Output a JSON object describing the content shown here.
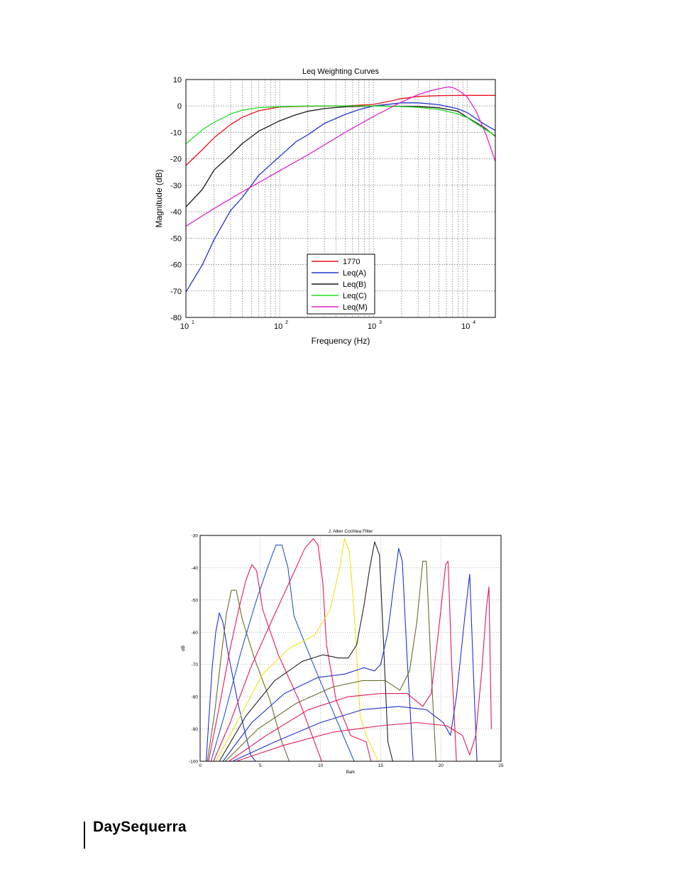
{
  "footer": {
    "brand": "DaySequerra"
  },
  "chart_data": [
    {
      "type": "line",
      "title": "Leq Weighting Curves",
      "xlabel": "Frequency (Hz)",
      "ylabel": "Magnitude (dB)",
      "xscale": "log",
      "xlim": [
        10,
        20000
      ],
      "ylim": [
        -80,
        10
      ],
      "grid": true,
      "legend_position": "bottom-center",
      "x_ticks": [
        10,
        100,
        1000,
        10000
      ],
      "x_tick_labels": [
        "10",
        "10",
        "10",
        "10"
      ],
      "x_tick_exponents": [
        "1",
        "2",
        "3",
        "4"
      ],
      "y_ticks": [
        10,
        0,
        -10,
        -20,
        -30,
        -40,
        -50,
        -60,
        -70,
        -80
      ],
      "y_tick_labels": [
        "10",
        "0",
        "-10",
        "-20",
        "-30",
        "-40",
        "-50",
        "-60",
        "-70",
        "-80"
      ],
      "series": [
        {
          "name": "1770",
          "color": "#e8121c",
          "x": [
            10,
            15,
            20,
            30,
            40,
            60,
            100,
            200,
            500,
            1000,
            1500,
            2000,
            3000,
            5000,
            10000,
            20000
          ],
          "values": [
            -22.5,
            -16.5,
            -12.0,
            -7.0,
            -4.3,
            -1.8,
            -0.4,
            -0.1,
            0.0,
            0.6,
            1.8,
            2.8,
            3.6,
            3.9,
            4.0,
            4.0
          ]
        },
        {
          "name": "Leq(A)",
          "color": "#2233cc",
          "x": [
            10,
            15,
            20,
            30,
            40,
            60,
            100,
            150,
            200,
            300,
            500,
            700,
            1000,
            2000,
            3000,
            5000,
            8000,
            10000,
            15000,
            20000
          ],
          "values": [
            -70.4,
            -60.0,
            -50.5,
            -39.5,
            -34.6,
            -26.2,
            -19.1,
            -13.5,
            -10.9,
            -6.6,
            -3.2,
            -1.4,
            0.0,
            1.2,
            1.2,
            0.5,
            -1.1,
            -2.5,
            -6.7,
            -9.3
          ]
        },
        {
          "name": "Leq(B)",
          "color": "#1a1a1a",
          "x": [
            10,
            15,
            20,
            30,
            40,
            60,
            100,
            150,
            200,
            300,
            500,
            1000,
            2000,
            3000,
            5000,
            8000,
            10000,
            15000,
            20000
          ],
          "values": [
            -38.2,
            -31.5,
            -24.2,
            -18.5,
            -14.2,
            -9.5,
            -5.6,
            -3.3,
            -2.0,
            -1.0,
            -0.3,
            0.0,
            -0.1,
            -0.2,
            -0.7,
            -2.0,
            -4.3,
            -8.0,
            -11.5
          ]
        },
        {
          "name": "Leq(C)",
          "color": "#22dd22",
          "x": [
            10,
            15,
            20,
            30,
            40,
            60,
            100,
            200,
            500,
            1000,
            2000,
            3000,
            5000,
            8000,
            10000,
            15000,
            20000
          ],
          "values": [
            -14.3,
            -9.0,
            -6.2,
            -3.0,
            -1.6,
            -0.6,
            -0.3,
            0.0,
            0.0,
            0.0,
            -0.2,
            -0.5,
            -1.3,
            -3.0,
            -4.4,
            -8.5,
            -11.2
          ]
        },
        {
          "name": "Leq(M)",
          "color": "#dd22cc",
          "x": [
            10,
            20,
            40,
            100,
            200,
            500,
            1000,
            2000,
            3000,
            4000,
            5000,
            6300,
            7000,
            8000,
            10000,
            12500,
            16000,
            20000
          ],
          "values": [
            -45.5,
            -38.8,
            -32.5,
            -24.5,
            -18.5,
            -10.0,
            -4.0,
            1.5,
            4.3,
            5.7,
            6.5,
            7.2,
            7.0,
            6.0,
            3.5,
            -2.0,
            -11.0,
            -21.0
          ]
        }
      ]
    },
    {
      "type": "line",
      "title": "J. Allen Cochlea Filter",
      "xlabel": "Bark",
      "ylabel": "dB",
      "xlim": [
        0,
        25
      ],
      "ylim": [
        -100,
        -30
      ],
      "grid": true,
      "x_ticks": [
        0,
        5,
        10,
        15,
        20,
        25
      ],
      "x_tick_labels": [
        "0",
        "5",
        "10",
        "15",
        "20",
        "25"
      ],
      "y_ticks": [
        -30,
        -40,
        -50,
        -60,
        -70,
        -80,
        -90,
        -100
      ],
      "y_tick_labels": [
        "-30",
        "-40",
        "-50",
        "-60",
        "-70",
        "-80",
        "-90",
        "-100"
      ],
      "filters": [
        {
          "color": "#2233cc",
          "x": [
            0.5,
            1.0,
            1.3,
            1.6,
            1.9,
            2.3,
            3.2,
            4.2,
            4.6
          ],
          "values": [
            -100,
            -71,
            -60,
            -54,
            -57,
            -66,
            -83,
            -98,
            -100
          ]
        },
        {
          "color": "#6b6b2a",
          "x": [
            0.6,
            1.2,
            1.8,
            2.2,
            2.6,
            3.0,
            3.5,
            4.5,
            5.8,
            6.7,
            7.4
          ],
          "values": [
            -100,
            -85,
            -66,
            -54,
            -47,
            -47,
            -56,
            -68,
            -81,
            -93,
            -100
          ]
        },
        {
          "color": "#e0195c",
          "x": [
            0.7,
            1.6,
            2.5,
            3.2,
            3.8,
            4.3,
            4.7,
            5.2,
            6.5,
            8.2,
            9.5,
            10.1
          ],
          "values": [
            -100,
            -83,
            -65,
            -53,
            -44,
            -39,
            -41,
            -53,
            -67,
            -81,
            -94,
            -100
          ]
        },
        {
          "color": "#2255cc",
          "x": [
            0.9,
            2.0,
            3.4,
            4.6,
            5.6,
            6.3,
            6.8,
            7.3,
            7.8,
            9.3,
            11.2,
            12.8
          ],
          "values": [
            -100,
            -86,
            -66,
            -51,
            -40,
            -33,
            -33,
            -40,
            -55,
            -69,
            -86,
            -100
          ]
        },
        {
          "color": "#e0195c",
          "x": [
            1.1,
            2.5,
            4.2,
            6.0,
            7.6,
            8.7,
            9.4,
            9.8,
            10.2,
            10.5,
            11.3,
            12.5,
            13.8,
            14.2
          ],
          "values": [
            -100,
            -88,
            -71,
            -56,
            -43,
            -34,
            -31,
            -33,
            -45,
            -64,
            -81,
            -92,
            -94,
            -100
          ]
        },
        {
          "color": "#f2e21a",
          "x": [
            1.3,
            3.2,
            5.2,
            7.4,
            9.5,
            10.8,
            11.6,
            12.0,
            12.4,
            12.8,
            13.3,
            13.8,
            14.8
          ],
          "values": [
            -100,
            -87,
            -73,
            -65,
            -61,
            -53,
            -40,
            -31,
            -35,
            -54,
            -86,
            -92,
            -100
          ]
        },
        {
          "color": "#222222",
          "x": [
            1.6,
            3.8,
            6.2,
            8.5,
            10.2,
            11.5,
            12.3,
            13.0,
            13.6,
            14.1,
            14.5,
            14.9,
            15.2,
            15.6,
            16.0
          ],
          "values": [
            -100,
            -86,
            -75,
            -69,
            -67,
            -68,
            -68,
            -64,
            -52,
            -40,
            -32,
            -36,
            -60,
            -94,
            -100
          ]
        },
        {
          "color": "#2233cc",
          "x": [
            1.9,
            4.3,
            7.0,
            9.8,
            12.0,
            13.6,
            14.5,
            15.0,
            15.6,
            16.1,
            16.5,
            16.8,
            17.2,
            17.7
          ],
          "values": [
            -100,
            -88,
            -79,
            -74,
            -73,
            -71,
            -72,
            -70,
            -60,
            -45,
            -34,
            -38,
            -68,
            -100
          ]
        },
        {
          "color": "#6b6b2a",
          "x": [
            2.1,
            4.8,
            8.0,
            11.0,
            13.5,
            15.4,
            16.6,
            17.4,
            18.0,
            18.5,
            18.8,
            19.2,
            19.6
          ],
          "values": [
            -100,
            -90,
            -82,
            -77,
            -75,
            -75,
            -78,
            -72,
            -57,
            -38,
            -38,
            -72,
            -100
          ]
        },
        {
          "color": "#e0195c",
          "x": [
            2.4,
            5.5,
            9.0,
            12.3,
            15.0,
            17.2,
            18.5,
            19.2,
            19.8,
            20.4,
            20.6,
            20.9,
            21.3
          ],
          "values": [
            -100,
            -92,
            -84,
            -80,
            -79,
            -79,
            -83,
            -79,
            -60,
            -39,
            -38,
            -70,
            -100
          ]
        },
        {
          "color": "#2233cc",
          "x": [
            2.7,
            6.2,
            10.0,
            13.5,
            16.5,
            18.8,
            20.2,
            20.8,
            21.3,
            22.0,
            22.4,
            22.7,
            23.0
          ],
          "values": [
            -100,
            -94,
            -88,
            -84,
            -83,
            -84,
            -88,
            -92,
            -80,
            -55,
            -42,
            -72,
            -100
          ]
        },
        {
          "color": "#e0195c",
          "x": [
            3.0,
            7.0,
            11.0,
            15.0,
            18.0,
            20.5,
            21.8,
            22.4,
            22.9,
            23.4,
            23.8,
            24.0,
            24.2
          ],
          "values": [
            -100,
            -95,
            -91,
            -89,
            -88,
            -89,
            -92,
            -98,
            -92,
            -72,
            -52,
            -46,
            -90
          ]
        }
      ]
    }
  ]
}
